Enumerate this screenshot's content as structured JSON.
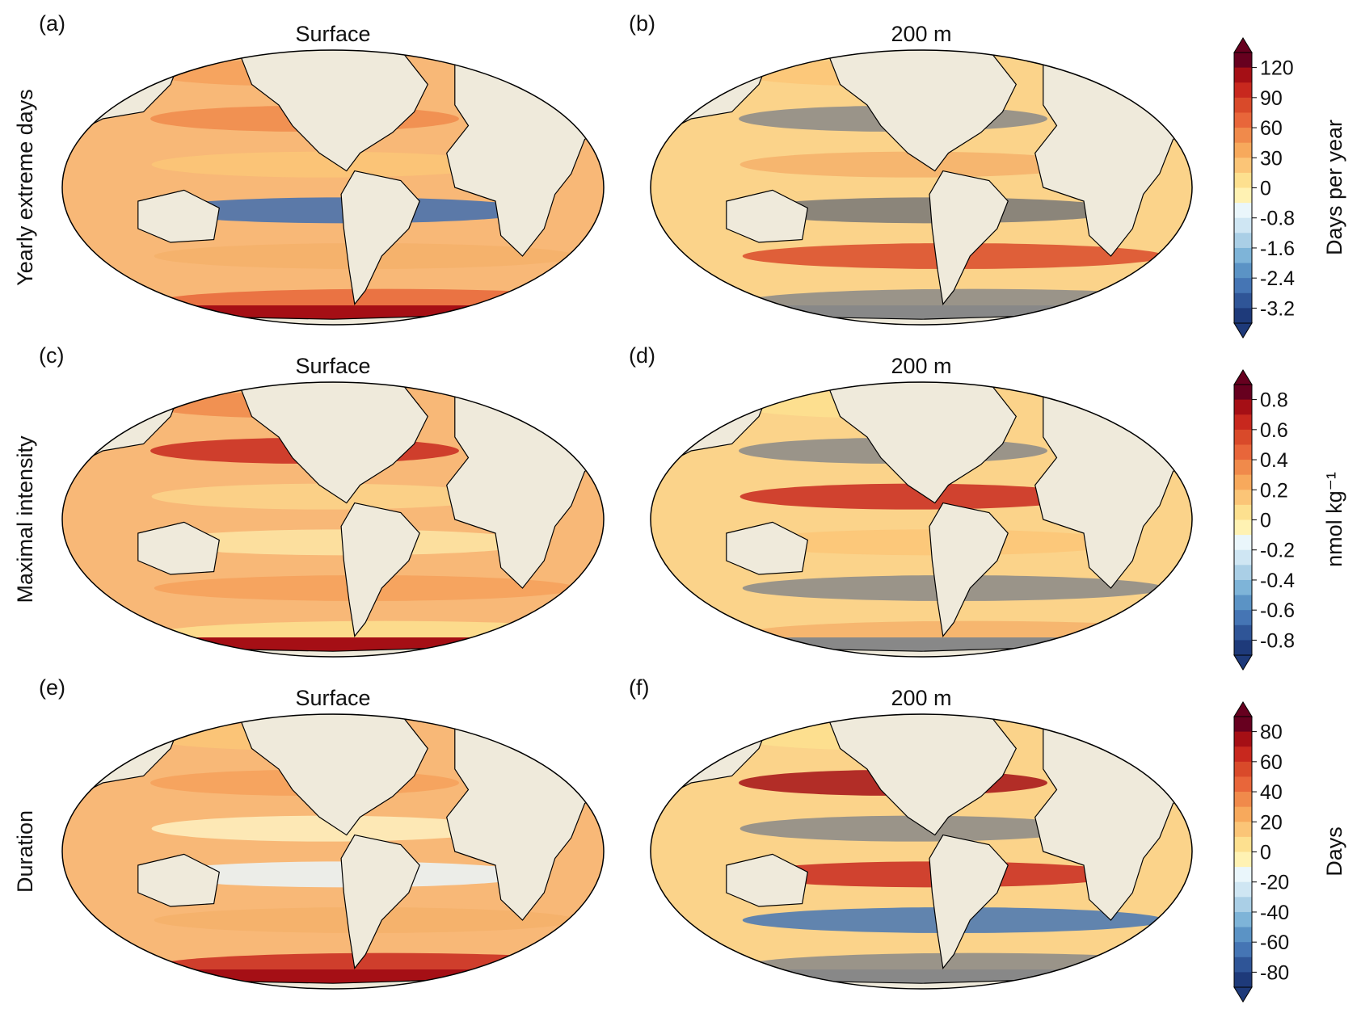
{
  "panels": [
    {
      "label": "(a)",
      "title": "Surface"
    },
    {
      "label": "(b)",
      "title": "200 m"
    },
    {
      "label": "(c)",
      "title": "Surface"
    },
    {
      "label": "(d)",
      "title": "200 m"
    },
    {
      "label": "(e)",
      "title": "Surface"
    },
    {
      "label": "(f)",
      "title": "200 m"
    }
  ],
  "rows": [
    {
      "label": "Yearly extreme days",
      "colorbar": {
        "label": "Days per year",
        "ticks": [
          120,
          90,
          60,
          30,
          0,
          -0.8,
          -1.6,
          -2.4,
          -3.2
        ]
      }
    },
    {
      "label": "Maximal intensity",
      "colorbar": {
        "label": "nmol kg⁻¹",
        "ticks": [
          0.8,
          0.6,
          0.4,
          0.2,
          0,
          -0.2,
          -0.4,
          -0.6,
          -0.8
        ]
      }
    },
    {
      "label": "Duration",
      "colorbar": {
        "label": "Days",
        "ticks": [
          80,
          60,
          40,
          20,
          0,
          -20,
          -40,
          -60,
          -80
        ]
      }
    }
  ]
}
